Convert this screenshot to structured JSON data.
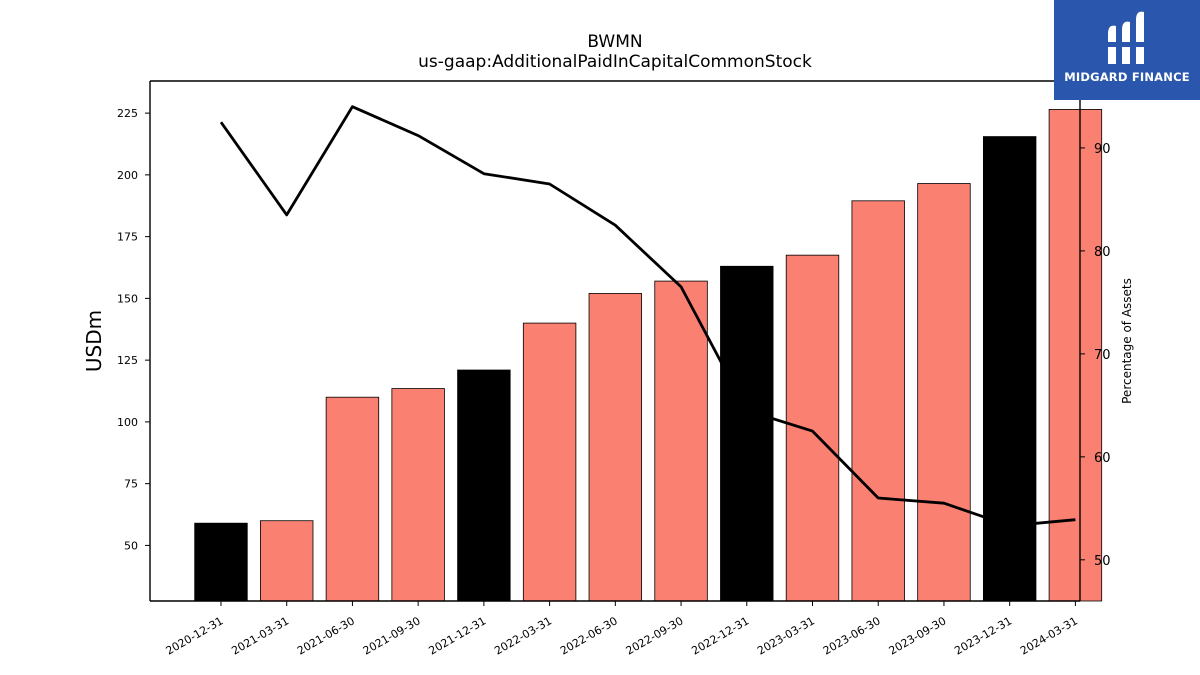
{
  "chart_data": {
    "type": "bar",
    "title": "BWMN",
    "subtitle": "us-gaap:AdditionalPaidInCapitalCommonStock",
    "ylabel": "USDm",
    "y2label": "Percentage of Assets",
    "categories": [
      "2020-12-31",
      "2021-03-31",
      "2021-06-30",
      "2021-09-30",
      "2021-12-31",
      "2022-03-31",
      "2022-06-30",
      "2022-09-30",
      "2022-12-31",
      "2023-03-31",
      "2023-06-30",
      "2023-09-30",
      "2023-12-31",
      "2024-03-31"
    ],
    "series": [
      {
        "type": "bar",
        "values": [
          59,
          60,
          110,
          113.5,
          121,
          140,
          152,
          157,
          163,
          167.5,
          189.5,
          196.5,
          215.5,
          226.5
        ],
        "colors": [
          "#000000",
          "#fa8072",
          "#fa8072",
          "#fa8072",
          "#000000",
          "#fa8072",
          "#fa8072",
          "#fa8072",
          "#000000",
          "#fa8072",
          "#fa8072",
          "#fa8072",
          "#000000",
          "#fa8072"
        ],
        "axis": "left"
      },
      {
        "type": "line",
        "values": [
          92.5,
          83.5,
          94,
          91.2,
          87.5,
          86.5,
          82.5,
          76.5,
          64.5,
          62.5,
          56,
          55.5,
          53.3,
          53.9
        ],
        "color": "#000000",
        "axis": "right"
      }
    ],
    "ylim": [
      27.5,
      238
    ],
    "y2lim": [
      46,
      96.5
    ],
    "yticks": [
      50,
      75,
      100,
      125,
      150,
      175,
      200,
      225
    ],
    "y2ticks": [
      50,
      60,
      70,
      80,
      90
    ],
    "grid": false
  },
  "logo": {
    "text": "MIDGARD FINANCE",
    "color": "#2a57ad"
  }
}
